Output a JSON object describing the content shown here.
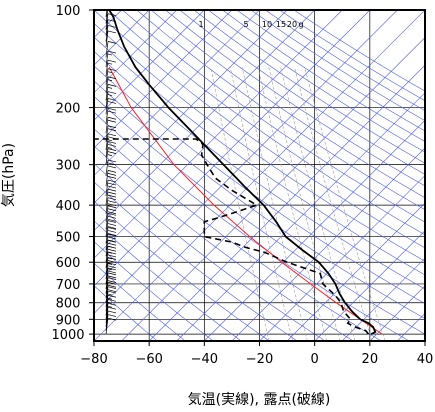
{
  "chart_data": {
    "type": "skew-t",
    "xlabel": "気温(実線), 露点(破線)",
    "ylabel": "気圧(hPa)",
    "x_ticks": [
      -80,
      -60,
      -40,
      -20,
      0,
      20,
      40
    ],
    "y_ticks": [
      100,
      200,
      300,
      400,
      500,
      600,
      700,
      800,
      900,
      1000
    ],
    "xlim": [
      -80,
      40
    ],
    "ylim": [
      1050,
      100
    ],
    "y_scale": "log",
    "grid": true,
    "mixing_ratio_labels": [
      {
        "text": "1",
        "value": 1
      },
      {
        "text": "5",
        "value": 5
      },
      {
        "text": "10",
        "value": 10
      },
      {
        "text": "15",
        "value": 15
      },
      {
        "text": "20",
        "value": 20
      },
      {
        "text": "g",
        "value": null
      }
    ],
    "temperature": {
      "pressure": [
        1000,
        985,
        950,
        925,
        900,
        850,
        800,
        750,
        700,
        650,
        600,
        550,
        500,
        450,
        400,
        350,
        300,
        250,
        200,
        170,
        150,
        130,
        115,
        105,
        100
      ],
      "temp": [
        20.5,
        22.0,
        21.2,
        19.5,
        16.5,
        13.5,
        11.0,
        9.0,
        7.5,
        5.0,
        1.5,
        -4.5,
        -10.5,
        -14.0,
        -18.5,
        -25.5,
        -33.0,
        -42.0,
        -53.0,
        -60.0,
        -65.0,
        -69.0,
        -71.5,
        -73.0,
        -74.5
      ]
    },
    "dewpoint": {
      "pressure": [
        1000,
        975,
        950,
        925,
        900,
        850,
        800,
        760,
        700,
        650,
        600,
        560,
        540,
        520,
        500,
        450,
        440,
        420,
        400,
        360,
        330,
        300,
        280,
        260,
        250,
        250
      ],
      "dewp": [
        19.5,
        18.5,
        14.5,
        12.0,
        13.0,
        10.5,
        9.5,
        7.5,
        3.0,
        2.0,
        -10.0,
        -18.0,
        -25.0,
        -30.0,
        -40.0,
        -40.0,
        -36.0,
        -28.5,
        -21.0,
        -30.0,
        -36.0,
        -39.0,
        -41.0,
        -40.5,
        -43.0,
        -80.0
      ]
    },
    "parcel": {
      "pressure": [
        1000,
        900,
        800,
        700,
        600,
        500,
        400,
        300,
        200,
        150
      ],
      "temp": [
        24.5,
        16.5,
        7.8,
        -1.5,
        -12.0,
        -23.5,
        -36.5,
        -51.0,
        -66.5,
        -74.5
      ]
    },
    "wind_barbs": {
      "x_position": -80,
      "pressure": [
        1000,
        975,
        950,
        925,
        900,
        875,
        850,
        825,
        800,
        775,
        750,
        725,
        700,
        675,
        650,
        625,
        600,
        575,
        550,
        525,
        500,
        475,
        450,
        425,
        400,
        375,
        350,
        325,
        300,
        285,
        270,
        255,
        240,
        225,
        210,
        200,
        190,
        180,
        170,
        160,
        150,
        140,
        130,
        125,
        120,
        115,
        110,
        105,
        100
      ],
      "speed_kt": [
        10,
        10,
        10,
        10,
        15,
        15,
        15,
        15,
        20,
        20,
        20,
        20,
        20,
        25,
        25,
        25,
        25,
        25,
        30,
        30,
        30,
        30,
        30,
        30,
        30,
        30,
        30,
        30,
        25,
        25,
        25,
        20,
        20,
        20,
        20,
        15,
        15,
        15,
        15,
        15,
        15,
        10,
        10,
        10,
        10,
        10,
        10,
        10,
        10
      ]
    }
  }
}
